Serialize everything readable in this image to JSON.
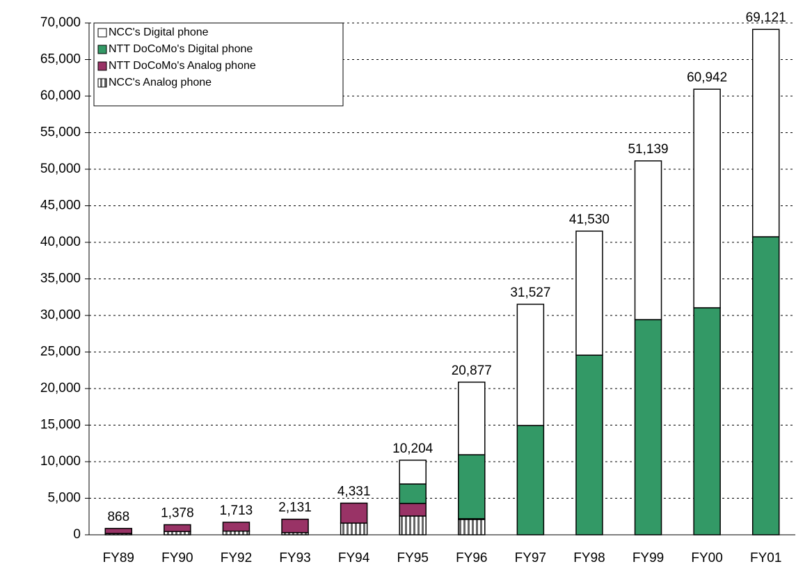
{
  "chart_data": {
    "type": "stacked-bar",
    "categories": [
      "FY89",
      "FY90",
      "FY92",
      "FY93",
      "FY94",
      "FY95",
      "FY96",
      "FY97",
      "FY98",
      "FY99",
      "FY00",
      "FY01"
    ],
    "series": [
      {
        "name": "NCC's Analog phone",
        "color": "striped",
        "values": [
          180,
          450,
          500,
          300,
          1600,
          2570,
          2100,
          0,
          0,
          0,
          0,
          0
        ]
      },
      {
        "name": "NTT DoCoMo's Analog phone",
        "color": "#993366",
        "values": [
          688,
          928,
          1213,
          1831,
          2731,
          1720,
          100,
          0,
          0,
          0,
          0,
          0
        ]
      },
      {
        "name": "NTT DoCoMo's Digital phone",
        "color": "#339966",
        "values": [
          0,
          0,
          0,
          0,
          0,
          2660,
          8750,
          14950,
          24570,
          29430,
          31050,
          40760
        ]
      },
      {
        "name": "NCC's Digital phone",
        "color": "#ffffff",
        "values": [
          0,
          0,
          0,
          0,
          0,
          3254,
          9927,
          16577,
          16960,
          21709,
          29892,
          28361
        ]
      }
    ],
    "totals": [
      868,
      1378,
      1713,
      2131,
      4331,
      10204,
      20877,
      31527,
      41530,
      51139,
      60942,
      69121
    ],
    "total_labels": [
      "868",
      "1,378",
      "1,713",
      "2,131",
      "4,331",
      "10,204",
      "20,877",
      "31,527",
      "41,530",
      "51,139",
      "60,942",
      "69,121"
    ],
    "ylim": [
      0,
      70000
    ],
    "yticks": [
      0,
      {
        "value": 5000,
        "label": "5,000"
      },
      {
        "value": 10000,
        "label": "10,000"
      },
      {
        "value": 15000,
        "label": "15,000"
      },
      {
        "value": 20000,
        "label": "20,000"
      },
      {
        "value": 25000,
        "label": "25,000"
      },
      {
        "value": 30000,
        "label": "30,000"
      },
      {
        "value": 35000,
        "label": "35,000"
      },
      {
        "value": 40000,
        "label": "40,000"
      },
      {
        "value": 45000,
        "label": "45,000"
      },
      {
        "value": 50000,
        "label": "50,000"
      },
      {
        "value": 55000,
        "label": "55,000"
      },
      {
        "value": 60000,
        "label": "60,000"
      },
      {
        "value": 65000,
        "label": "65,000"
      },
      {
        "value": 70000,
        "label": "70,000"
      }
    ],
    "grid": true
  }
}
